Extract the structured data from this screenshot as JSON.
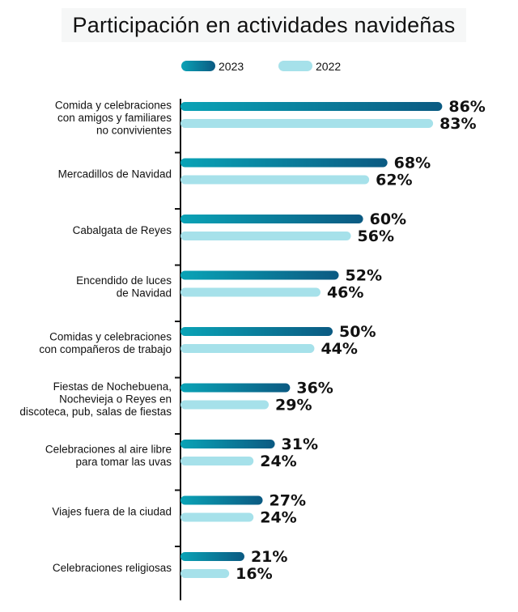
{
  "chart_data": {
    "type": "bar",
    "orientation": "horizontal",
    "title": "Participación en actividades navideñas",
    "xlim": [
      0,
      100
    ],
    "legend_position": "top",
    "value_suffix": "%",
    "categories": [
      [
        "Comida y celebraciones",
        "con amigos y familiares",
        "no convivientes"
      ],
      [
        "Mercadillos de Navidad"
      ],
      [
        "Cabalgata de Reyes"
      ],
      [
        "Encendido de luces",
        "de Navidad"
      ],
      [
        "Comidas y celebraciones",
        "con compañeros de trabajo"
      ],
      [
        "Fiestas de Nochebuena,",
        "Nochevieja o Reyes en",
        "discoteca, pub, salas de fiestas"
      ],
      [
        "Celebraciones al aire libre",
        "para tomar las uvas"
      ],
      [
        "Viajes fuera de la ciudad"
      ],
      [
        "Celebraciones religiosas"
      ]
    ],
    "series": [
      {
        "name": "2023",
        "values": [
          86,
          68,
          60,
          52,
          50,
          36,
          31,
          27,
          21
        ]
      },
      {
        "name": "2022",
        "values": [
          83,
          62,
          56,
          46,
          44,
          29,
          24,
          24,
          16
        ]
      }
    ]
  },
  "colors": {
    "series_2023_start": "#0aa3b6",
    "series_2023_end": "#0b5a82",
    "series_2022": "#a6e1ea",
    "axis": "#111111",
    "title_background": "#f6f7f7"
  }
}
